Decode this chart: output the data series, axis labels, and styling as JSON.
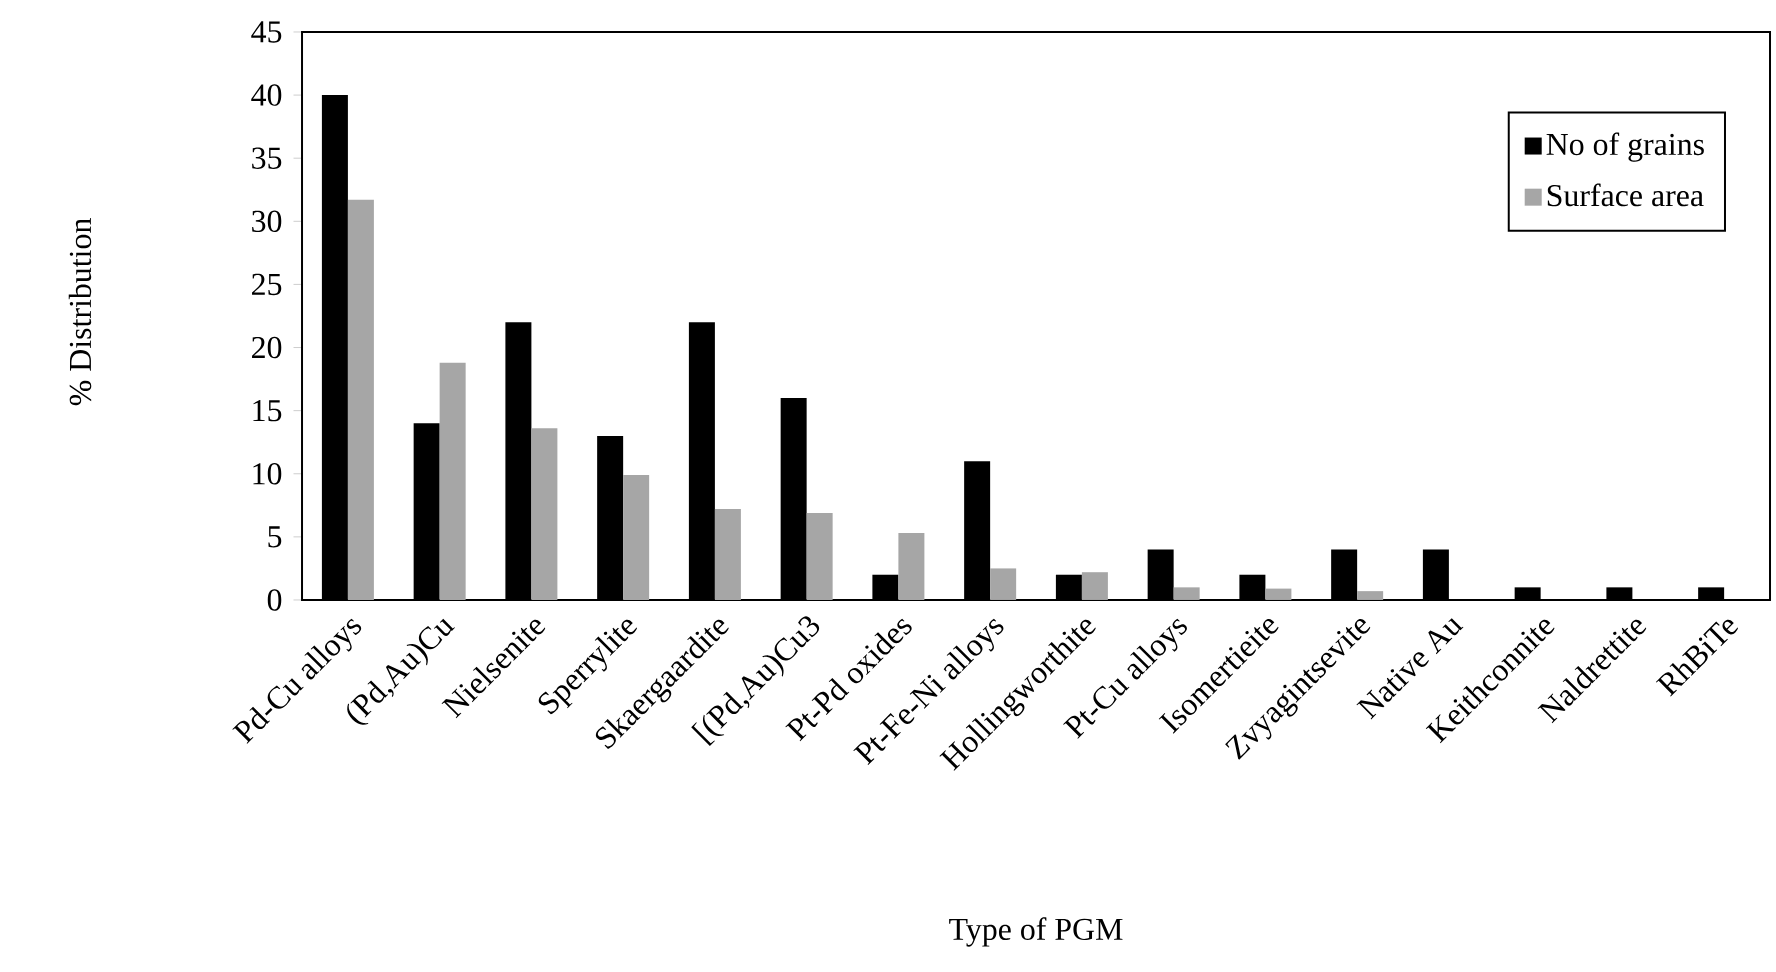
{
  "chart_data": {
    "type": "bar",
    "xlabel": "Type of PGM",
    "ylabel": "% Distribution",
    "categories": [
      "Pd-Cu alloys",
      "(Pd,Au)Cu",
      "Nielsenite",
      "Sperrylite",
      "Skaergaardite",
      "[(Pd,Au)Cu3",
      "Pt-Pd oxides",
      "Pt-Fe-Ni alloys",
      "Hollingworthite",
      "Pt-Cu alloys",
      "Isomertieite",
      "Zvyagintsevite",
      "Native Au",
      "Keithconnite",
      "Naldrettite",
      "RhBiTe"
    ],
    "series": [
      {
        "name": "No of grains",
        "color": "#000000",
        "values": [
          40,
          14,
          22,
          13,
          22,
          16,
          2,
          11,
          2,
          4,
          2,
          4,
          4,
          1,
          1,
          1
        ]
      },
      {
        "name": "Surface area",
        "color": "#a6a6a6",
        "values": [
          31.7,
          18.8,
          13.6,
          9.9,
          7.2,
          6.9,
          5.3,
          2.5,
          2.2,
          1.0,
          0.9,
          0.7,
          0,
          0,
          0,
          0
        ]
      }
    ],
    "ylim": [
      0,
      45
    ],
    "yticks": [
      0,
      5,
      10,
      15,
      20,
      25,
      30,
      35,
      40,
      45
    ],
    "grid": false,
    "legend": "top right"
  }
}
